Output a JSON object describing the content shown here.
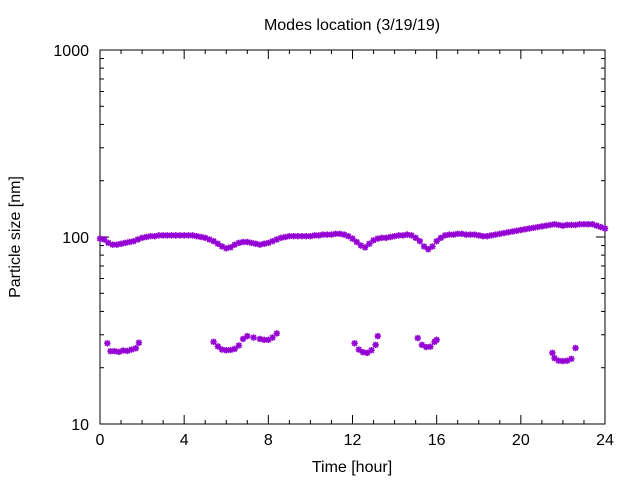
{
  "chart_data": {
    "type": "scatter",
    "title": "Modes location (3/19/19)",
    "xlabel": "Time [hour]",
    "ylabel": "Particle size [nm]",
    "xlim": [
      0,
      24
    ],
    "ylim": [
      10,
      1000
    ],
    "yscale": "log",
    "xticks": [
      0,
      4,
      8,
      12,
      16,
      20,
      24
    ],
    "yticks": [
      10,
      100,
      1000
    ],
    "grid": false,
    "legend": "none",
    "marker_color": "#9400d3",
    "marker": "star",
    "series": [
      {
        "values": [
          [
            0.0,
            98
          ],
          [
            0.2,
            97
          ],
          [
            0.4,
            93
          ],
          [
            0.6,
            91
          ],
          [
            0.8,
            91
          ],
          [
            1.0,
            92
          ],
          [
            1.2,
            93
          ],
          [
            1.4,
            94
          ],
          [
            1.6,
            95
          ],
          [
            1.8,
            97
          ],
          [
            2.0,
            99
          ],
          [
            2.2,
            100
          ],
          [
            2.4,
            101
          ],
          [
            2.6,
            101
          ],
          [
            2.8,
            102
          ],
          [
            3.0,
            102
          ],
          [
            3.2,
            102
          ],
          [
            3.4,
            102
          ],
          [
            3.6,
            102
          ],
          [
            3.8,
            102
          ],
          [
            4.0,
            102
          ],
          [
            4.2,
            102
          ],
          [
            4.4,
            102
          ],
          [
            4.6,
            101
          ],
          [
            4.8,
            100
          ],
          [
            5.0,
            99
          ],
          [
            5.2,
            97
          ],
          [
            5.4,
            95
          ],
          [
            5.6,
            92
          ],
          [
            5.8,
            89
          ],
          [
            6.0,
            87
          ],
          [
            6.2,
            88
          ],
          [
            6.4,
            91
          ],
          [
            6.6,
            93
          ],
          [
            6.8,
            94
          ],
          [
            7.0,
            94
          ],
          [
            7.2,
            93
          ],
          [
            7.4,
            92
          ],
          [
            7.6,
            91
          ],
          [
            7.8,
            92
          ],
          [
            8.0,
            93
          ],
          [
            8.2,
            95
          ],
          [
            8.4,
            97
          ],
          [
            8.6,
            99
          ],
          [
            8.8,
            100
          ],
          [
            9.0,
            101
          ],
          [
            9.2,
            101
          ],
          [
            9.4,
            101
          ],
          [
            9.6,
            101
          ],
          [
            9.8,
            101
          ],
          [
            10.0,
            101
          ],
          [
            10.2,
            102
          ],
          [
            10.4,
            102
          ],
          [
            10.6,
            103
          ],
          [
            10.8,
            103
          ],
          [
            11.0,
            103
          ],
          [
            11.2,
            104
          ],
          [
            11.4,
            104
          ],
          [
            11.6,
            103
          ],
          [
            11.8,
            101
          ],
          [
            12.0,
            98
          ],
          [
            12.2,
            94
          ],
          [
            12.4,
            90
          ],
          [
            12.6,
            88
          ],
          [
            12.8,
            92
          ],
          [
            13.0,
            96
          ],
          [
            13.2,
            98
          ],
          [
            13.4,
            99
          ],
          [
            13.6,
            99
          ],
          [
            13.8,
            100
          ],
          [
            14.0,
            101
          ],
          [
            14.2,
            102
          ],
          [
            14.4,
            102
          ],
          [
            14.6,
            103
          ],
          [
            14.8,
            102
          ],
          [
            15.0,
            99
          ],
          [
            15.2,
            95
          ],
          [
            15.4,
            89
          ],
          [
            15.6,
            86
          ],
          [
            15.8,
            89
          ],
          [
            16.0,
            95
          ],
          [
            16.2,
            99
          ],
          [
            16.4,
            102
          ],
          [
            16.6,
            103
          ],
          [
            16.8,
            103
          ],
          [
            17.0,
            104
          ],
          [
            17.2,
            104
          ],
          [
            17.4,
            103
          ],
          [
            17.6,
            103
          ],
          [
            17.8,
            103
          ],
          [
            18.0,
            102
          ],
          [
            18.2,
            101
          ],
          [
            18.4,
            101
          ],
          [
            18.6,
            102
          ],
          [
            18.8,
            103
          ],
          [
            19.0,
            104
          ],
          [
            19.2,
            105
          ],
          [
            19.4,
            106
          ],
          [
            19.6,
            107
          ],
          [
            19.8,
            108
          ],
          [
            20.0,
            109
          ],
          [
            20.2,
            110
          ],
          [
            20.4,
            111
          ],
          [
            20.6,
            112
          ],
          [
            20.8,
            113
          ],
          [
            21.0,
            114
          ],
          [
            21.2,
            115
          ],
          [
            21.4,
            116
          ],
          [
            21.6,
            117
          ],
          [
            21.8,
            116
          ],
          [
            22.0,
            115
          ],
          [
            22.2,
            116
          ],
          [
            22.4,
            116
          ],
          [
            22.6,
            116
          ],
          [
            22.8,
            117
          ],
          [
            23.0,
            117
          ],
          [
            23.2,
            117
          ],
          [
            23.4,
            117
          ],
          [
            23.6,
            115
          ],
          [
            23.8,
            113
          ],
          [
            24.0,
            111
          ]
        ]
      },
      {
        "values": [
          [
            0.35,
            27
          ],
          [
            0.5,
            24.5
          ],
          [
            0.7,
            24.5
          ],
          [
            0.9,
            24.3
          ],
          [
            1.1,
            24.7
          ],
          [
            1.3,
            24.6
          ],
          [
            1.5,
            25
          ],
          [
            1.7,
            25.4
          ],
          [
            1.85,
            27.2
          ],
          [
            5.4,
            27.5
          ],
          [
            5.6,
            26
          ],
          [
            5.8,
            25
          ],
          [
            6.0,
            24.8
          ],
          [
            6.2,
            24.9
          ],
          [
            6.4,
            25.2
          ],
          [
            6.6,
            26.3
          ],
          [
            6.8,
            28.5
          ],
          [
            7.0,
            29.5
          ],
          [
            7.3,
            29
          ],
          [
            7.6,
            28.5
          ],
          [
            7.8,
            28.2
          ],
          [
            8.0,
            28.2
          ],
          [
            8.2,
            29
          ],
          [
            8.4,
            30.5
          ],
          [
            12.1,
            27
          ],
          [
            12.3,
            25
          ],
          [
            12.5,
            24.2
          ],
          [
            12.7,
            24
          ],
          [
            12.9,
            24.8
          ],
          [
            13.1,
            26.5
          ],
          [
            13.2,
            29.5
          ],
          [
            15.1,
            28.8
          ],
          [
            15.3,
            26.5
          ],
          [
            15.5,
            25.8
          ],
          [
            15.7,
            25.9
          ],
          [
            15.9,
            27.5
          ],
          [
            16.0,
            28.2
          ],
          [
            21.5,
            24
          ],
          [
            21.6,
            22.5
          ],
          [
            21.8,
            21.8
          ],
          [
            22.0,
            21.7
          ],
          [
            22.2,
            21.8
          ],
          [
            22.4,
            22.3
          ],
          [
            22.6,
            25.5
          ]
        ]
      }
    ]
  }
}
